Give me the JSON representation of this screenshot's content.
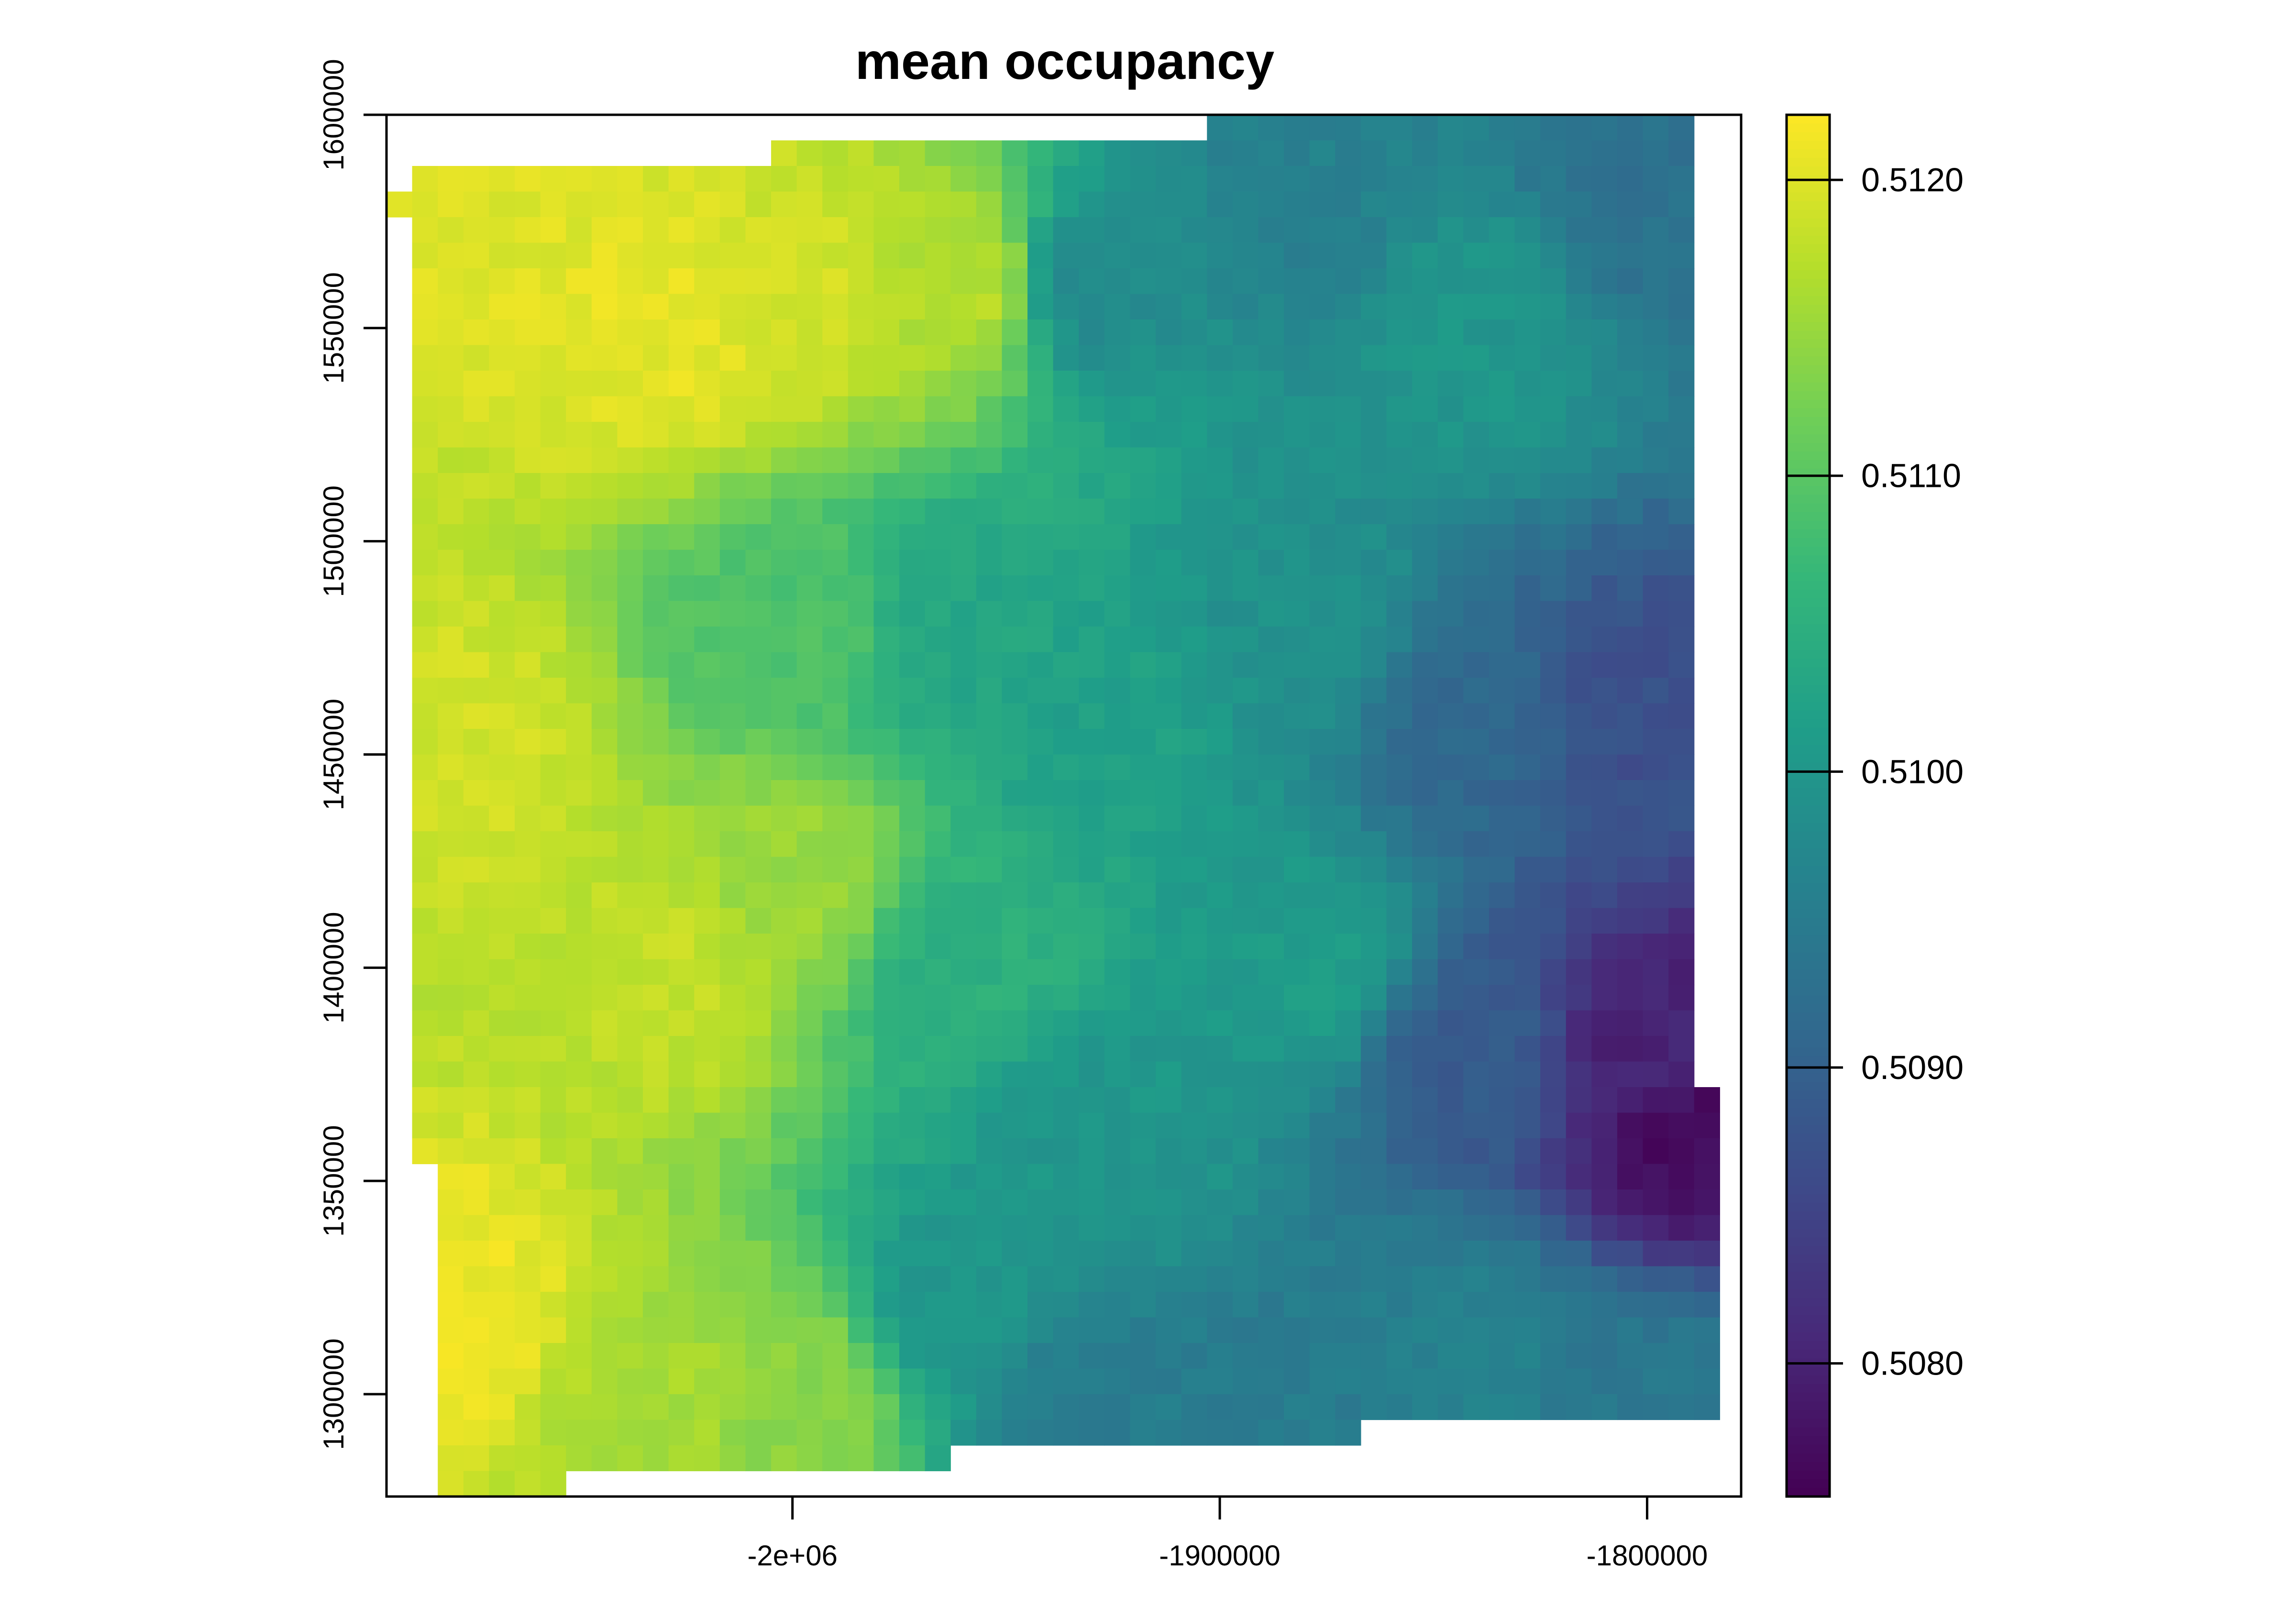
{
  "chart_data": {
    "type": "heatmap",
    "title": "mean occupancy",
    "xlabel": "",
    "ylabel": "",
    "xlim": [
      -2095000,
      -1778000
    ],
    "ylim": [
      1276000,
      1600000
    ],
    "x_ticks": [
      {
        "value": -2000000,
        "label": "-2e+06"
      },
      {
        "value": -1900000,
        "label": "-1900000"
      },
      {
        "value": -1800000,
        "label": "-1800000"
      }
    ],
    "y_ticks": [
      {
        "value": 1300000,
        "label": "1300000"
      },
      {
        "value": 1350000,
        "label": "1350000"
      },
      {
        "value": 1400000,
        "label": "1400000"
      },
      {
        "value": 1450000,
        "label": "1450000"
      },
      {
        "value": 1500000,
        "label": "1500000"
      },
      {
        "value": 1550000,
        "label": "1550000"
      },
      {
        "value": 1600000,
        "label": "1600000"
      }
    ],
    "color_scale": {
      "name": "viridis",
      "min": 0.50755,
      "max": 0.51222,
      "ticks": [
        {
          "value": 0.508,
          "label": "0.5080"
        },
        {
          "value": 0.509,
          "label": "0.5090"
        },
        {
          "value": 0.51,
          "label": "0.5100"
        },
        {
          "value": 0.511,
          "label": "0.5110"
        },
        {
          "value": 0.512,
          "label": "0.5120"
        }
      ],
      "stops": [
        "#440154",
        "#482878",
        "#3e4989",
        "#31688e",
        "#26828e",
        "#1f9e89",
        "#35b779",
        "#6ece58",
        "#b5de2b",
        "#fde725"
      ]
    },
    "grid": {
      "cell_size": 6000,
      "x_min": -2095000,
      "y_max": 1600000,
      "ncols": 53,
      "nrows": 54
    },
    "coverage_rows": [
      {
        "y_from": 1600000,
        "y_to": 1594000,
        "x_ranges": [
          [
            -1905000,
            -1788000
          ]
        ]
      },
      {
        "y_from": 1594000,
        "y_to": 1588000,
        "x_ranges": [
          [
            -2007000,
            -1788000
          ]
        ]
      },
      {
        "y_from": 1588000,
        "y_to": 1582000,
        "x_ranges": [
          [
            -2089000,
            -1788000
          ]
        ]
      },
      {
        "y_from": 1582000,
        "y_to": 1576000,
        "x_ranges": [
          [
            -2095000,
            -1788000
          ]
        ]
      },
      {
        "y_from": 1576000,
        "y_to": 1372000,
        "x_ranges": [
          [
            -2089000,
            -1788000
          ]
        ]
      },
      {
        "y_from": 1372000,
        "y_to": 1354000,
        "x_ranges": [
          [
            -2089000,
            -1782000
          ]
        ]
      },
      {
        "y_from": 1354000,
        "y_to": 1294000,
        "x_ranges": [
          [
            -2083000,
            -1782000
          ]
        ]
      },
      {
        "y_from": 1294000,
        "y_to": 1288000,
        "x_ranges": [
          [
            -2083000,
            -1868000
          ]
        ]
      },
      {
        "y_from": 1288000,
        "y_to": 1282000,
        "x_ranges": [
          [
            -2083000,
            -1965000
          ]
        ]
      },
      {
        "y_from": 1282000,
        "y_to": 1276000,
        "x_ranges": [
          [
            -2083000,
            -2053000
          ]
        ]
      }
    ],
    "value_field": {
      "description_of_gradient": "high (~0.5121) in west, falling to ~0.5096 through centre, lowest (~0.5076) in south-east corner",
      "control_points": [
        {
          "x": -2080000,
          "y": 1580000,
          "value": 0.512
        },
        {
          "x": -2080000,
          "y": 1450000,
          "value": 0.5119
        },
        {
          "x": -2080000,
          "y": 1320000,
          "value": 0.5121
        },
        {
          "x": -2030000,
          "y": 1550000,
          "value": 0.51205
        },
        {
          "x": -2030000,
          "y": 1400000,
          "value": 0.5118
        },
        {
          "x": -2030000,
          "y": 1300000,
          "value": 0.5116
        },
        {
          "x": -2000000,
          "y": 1560000,
          "value": 0.5119
        },
        {
          "x": -2000000,
          "y": 1480000,
          "value": 0.5109
        },
        {
          "x": -2000000,
          "y": 1420000,
          "value": 0.5115
        },
        {
          "x": -2000000,
          "y": 1300000,
          "value": 0.5114
        },
        {
          "x": -1960000,
          "y": 1560000,
          "value": 0.5117
        },
        {
          "x": -1960000,
          "y": 1480000,
          "value": 0.5103
        },
        {
          "x": -1960000,
          "y": 1400000,
          "value": 0.5105
        },
        {
          "x": -1960000,
          "y": 1320000,
          "value": 0.51
        },
        {
          "x": -1930000,
          "y": 1560000,
          "value": 0.5098
        },
        {
          "x": -1930000,
          "y": 1460000,
          "value": 0.5102
        },
        {
          "x": -1930000,
          "y": 1360000,
          "value": 0.51
        },
        {
          "x": -1930000,
          "y": 1300000,
          "value": 0.5095
        },
        {
          "x": -1880000,
          "y": 1580000,
          "value": 0.5096
        },
        {
          "x": -1880000,
          "y": 1480000,
          "value": 0.5099
        },
        {
          "x": -1880000,
          "y": 1400000,
          "value": 0.5101
        },
        {
          "x": -1880000,
          "y": 1300000,
          "value": 0.5095
        },
        {
          "x": -1840000,
          "y": 1550000,
          "value": 0.51
        },
        {
          "x": -1840000,
          "y": 1460000,
          "value": 0.5091
        },
        {
          "x": -1840000,
          "y": 1380000,
          "value": 0.5089
        },
        {
          "x": -1840000,
          "y": 1310000,
          "value": 0.5096
        },
        {
          "x": -1800000,
          "y": 1580000,
          "value": 0.5093
        },
        {
          "x": -1800000,
          "y": 1460000,
          "value": 0.5087
        },
        {
          "x": -1800000,
          "y": 1380000,
          "value": 0.508
        },
        {
          "x": -1800000,
          "y": 1300000,
          "value": 0.5094
        },
        {
          "x": -1790000,
          "y": 1360000,
          "value": 0.5077
        }
      ]
    }
  }
}
